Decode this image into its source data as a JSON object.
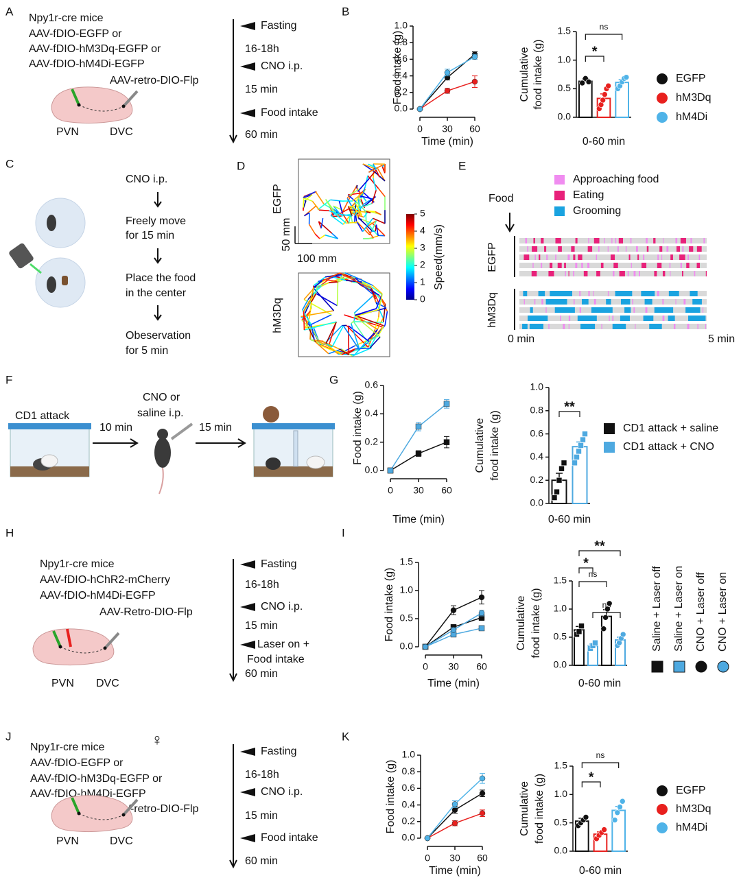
{
  "panel_labels": [
    "A",
    "B",
    "C",
    "D",
    "E",
    "F",
    "G",
    "H",
    "I",
    "J",
    "K"
  ],
  "panels": {
    "a": {
      "text": [
        "Npy1r-cre mice",
        "AAV-fDIO-EGFP or",
        "AAV-fDIO-hM3Dq-EGFP or",
        "AAV-fDIO-hM4Di-EGFP"
      ],
      "tracer": "AAV-retro-DIO-Flp",
      "regions": [
        "PVN",
        "DVC"
      ],
      "timeline": [
        "Fasting",
        "16-18h",
        "CNO i.p.",
        "15 min",
        "Food intake",
        "60 min"
      ]
    },
    "c": {
      "steps": [
        "CNO i.p.",
        "Freely move",
        "for 15 min",
        "Place the food",
        "in the center",
        "Obeservation",
        "for 5 min"
      ]
    },
    "d": {
      "groups": [
        "EGFP",
        "hM3Dq"
      ],
      "scale_bars": [
        "50 mm",
        "100 mm"
      ],
      "colorbar": {
        "label": "Speed(mm/s)",
        "clim": [
          0,
          5
        ],
        "ticks": [
          0,
          1,
          2,
          3,
          4,
          5
        ]
      }
    },
    "e": {
      "legend": [
        {
          "name": "Approaching food",
          "color": "#f08cf0"
        },
        {
          "name": "Eating",
          "color": "#e8217a"
        },
        {
          "name": "Grooming",
          "color": "#1aa3e0"
        }
      ],
      "food": "Food",
      "groups": [
        "EGFP",
        "hM3Dq"
      ],
      "time": [
        "0 min",
        "5 min"
      ]
    },
    "f": {
      "steps": [
        "CD1 attack",
        "10 min",
        "CNO or",
        "saline i.p.",
        "15 min"
      ]
    },
    "h": {
      "text": [
        "Npy1r-cre mice",
        "AAV-fDIO-hChR2-mCherry",
        "AAV-fDIO-hM4Di-EGFP"
      ],
      "tracer": "AAV-Retro-DIO-Flp",
      "regions": [
        "PVN",
        "DVC"
      ],
      "timeline": [
        "Fasting",
        "16-18h",
        "CNO i.p.",
        "15 min",
        "Laser on +",
        "Food intake",
        "60 min"
      ]
    },
    "j": {
      "symbol": "♀",
      "text": [
        "Npy1r-cre mice",
        "AAV-fDIO-EGFP or",
        "AAV-fDIO-hM3Dq-EGFP or",
        "AAV-fDIO-hM4Di-EGFP"
      ],
      "tracer": "AAV-retro-DIO-Flp",
      "regions": [
        "PVN",
        "DVC"
      ],
      "timeline": [
        "Fasting",
        "16-18h",
        "CNO i.p.",
        "15 min",
        "Food intake",
        "60 min"
      ]
    }
  },
  "chart_data": [
    {
      "type": "line",
      "xlabel": "Time (min)",
      "ylabel": [
        "Food intake (g)"
      ],
      "x": [
        0,
        30,
        60
      ],
      "xlim": [
        0,
        60
      ],
      "xticks": [
        0,
        30,
        60
      ],
      "ylim": [
        0,
        1
      ],
      "yticks": [
        {
          "value": 0,
          "label": "0.0"
        },
        0.2,
        0.4,
        0.6,
        0.8,
        {
          "value": 1,
          "label": "1.0"
        }
      ],
      "series": [
        {
          "color": "#111111",
          "marker": "circle",
          "values": [
            0,
            0.38,
            0.66
          ],
          "errors": [
            0,
            0.03,
            0.03
          ]
        },
        {
          "color": "#e8201e",
          "marker": "circle",
          "values": [
            0,
            0.22,
            0.33
          ],
          "errors": [
            0,
            0.03,
            0.07
          ]
        },
        {
          "color": "#4fb3e8",
          "marker": "circle",
          "values": [
            0,
            0.44,
            0.63
          ],
          "errors": [
            0,
            0.04,
            0.03
          ]
        }
      ]
    },
    {
      "type": "bar",
      "xlabel": "0-60 min",
      "ylabel": [
        "Cumulative",
        "food intake (g)"
      ],
      "ylim": [
        0,
        1.5
      ],
      "yticks": [
        {
          "value": 0,
          "label": "0.0"
        },
        0.5,
        {
          "value": 1,
          "label": "1.0"
        },
        1.5
      ],
      "legend": "right",
      "annotations": [
        "*",
        "ns"
      ],
      "series": [
        {
          "name": "EGFP",
          "color": "#111111",
          "marker": "circle",
          "values": [
            0.63
          ],
          "errors": [
            0.04
          ],
          "points": [
            0.6,
            0.68,
            0.62
          ]
        },
        {
          "name": "hM3Dq",
          "color": "#e8201e",
          "marker": "circle",
          "values": [
            0.33
          ],
          "errors": [
            0.08
          ],
          "points": [
            0.15,
            0.22,
            0.3,
            0.4,
            0.5,
            0.55
          ]
        },
        {
          "name": "hM4Di",
          "color": "#4fb3e8",
          "marker": "circle",
          "values": [
            0.61
          ],
          "errors": [
            0.05
          ],
          "points": [
            0.5,
            0.55,
            0.62,
            0.68,
            0.7
          ]
        }
      ]
    },
    {
      "type": "line",
      "xlabel": "Time (min)",
      "ylabel": [
        "Food intake (g)"
      ],
      "x": [
        0,
        30,
        60
      ],
      "xlim": [
        0,
        60
      ],
      "xticks": [
        0,
        30,
        60
      ],
      "ylim": [
        0,
        0.6
      ],
      "yticks": [
        {
          "value": 0,
          "label": "0.0"
        },
        0.2,
        0.4,
        0.6
      ],
      "series": [
        {
          "color": "#111111",
          "marker": "square",
          "values": [
            0,
            0.12,
            0.2
          ],
          "errors": [
            0,
            0.02,
            0.04
          ]
        },
        {
          "color": "#4ea9e0",
          "marker": "square",
          "values": [
            0,
            0.31,
            0.47
          ],
          "errors": [
            0,
            0.03,
            0.03
          ]
        }
      ]
    },
    {
      "type": "bar",
      "xlabel": "0-60 min",
      "ylabel": [
        "Cumulative",
        "food intake (g)"
      ],
      "ylim": [
        0,
        1
      ],
      "yticks": [
        {
          "value": 0,
          "label": "0.0"
        },
        0.2,
        0.4,
        0.6,
        0.8,
        {
          "value": 1,
          "label": "1.0"
        }
      ],
      "legend": "right",
      "annotations": [
        "**"
      ],
      "series": [
        {
          "name": "CD1 attack + saline",
          "color": "#111111",
          "marker": "square",
          "values": [
            0.2
          ],
          "errors": [
            0.06
          ],
          "points": [
            0.05,
            0.1,
            0.2,
            0.3,
            0.35
          ]
        },
        {
          "name": "CD1 attack + CNO",
          "color": "#4ea9e0",
          "marker": "square",
          "values": [
            0.49
          ],
          "errors": [
            0.04
          ],
          "points": [
            0.35,
            0.4,
            0.45,
            0.5,
            0.55,
            0.6
          ]
        }
      ]
    },
    {
      "type": "line",
      "xlabel": "Time (min)",
      "ylabel": [
        "Food intake (g)"
      ],
      "x": [
        0,
        30,
        60
      ],
      "xlim": [
        0,
        60
      ],
      "xticks": [
        0,
        30,
        60
      ],
      "ylim": [
        0,
        1.5
      ],
      "yticks": [
        {
          "value": 0,
          "label": "0.0"
        },
        0.5,
        {
          "value": 1,
          "label": "1.0"
        },
        1.5
      ],
      "series": [
        {
          "color": "#111111",
          "marker": "square",
          "values": [
            0,
            0.35,
            0.52
          ],
          "errors": [
            0,
            0.04,
            0.05
          ]
        },
        {
          "color": "#4ea9e0",
          "marker": "square",
          "values": [
            0,
            0.22,
            0.33
          ],
          "errors": [
            0,
            0.03,
            0.03
          ]
        },
        {
          "color": "#111111",
          "marker": "circle",
          "values": [
            0,
            0.65,
            0.88
          ],
          "errors": [
            0,
            0.08,
            0.12
          ]
        },
        {
          "color": "#4ea9e0",
          "marker": "circle",
          "values": [
            0,
            0.3,
            0.6
          ],
          "errors": [
            0,
            0.04,
            0.05
          ]
        }
      ]
    },
    {
      "type": "bar",
      "xlabel": "0-60 min",
      "ylabel": [
        "Cumulative",
        "food intake (g)"
      ],
      "ylim": [
        0,
        1.5
      ],
      "yticks": [
        {
          "value": 0,
          "label": "0.0"
        },
        0.5,
        {
          "value": 1,
          "label": "1.0"
        },
        1.5
      ],
      "legend": "right",
      "annotations": [
        "ns",
        "*",
        "**",
        "ns"
      ],
      "series": [
        {
          "name": "Saline + Laser off",
          "color": "#111111",
          "marker": "square",
          "values": [
            0.63
          ],
          "errors": [
            0.06
          ],
          "points": [
            0.55,
            0.6,
            0.7
          ]
        },
        {
          "name": "Saline + Laser on",
          "color": "#4ea9e0",
          "marker": "square",
          "values": [
            0.35
          ],
          "errors": [
            0.03
          ],
          "points": [
            0.3,
            0.35,
            0.4
          ]
        },
        {
          "name": "CNO + Laser off",
          "color": "#111111",
          "marker": "circle",
          "values": [
            0.87
          ],
          "errors": [
            0.12
          ],
          "points": [
            0.65,
            0.85,
            1.0,
            1.1
          ]
        },
        {
          "name": "CNO + Laser on",
          "color": "#4ea9e0",
          "marker": "circle",
          "values": [
            0.45
          ],
          "errors": [
            0.05
          ],
          "points": [
            0.35,
            0.4,
            0.48,
            0.55
          ]
        }
      ]
    },
    {
      "type": "line",
      "xlabel": "Time (min)",
      "ylabel": [
        "Food intake (g)"
      ],
      "x": [
        0,
        30,
        60
      ],
      "xlim": [
        0,
        60
      ],
      "xticks": [
        0,
        30,
        60
      ],
      "ylim": [
        0,
        1
      ],
      "yticks": [
        {
          "value": 0,
          "label": "0.0"
        },
        0.2,
        0.4,
        0.6,
        0.8,
        {
          "value": 1,
          "label": "1.0"
        }
      ],
      "series": [
        {
          "color": "#111111",
          "marker": "circle",
          "values": [
            0,
            0.34,
            0.54
          ],
          "errors": [
            0,
            0.04,
            0.04
          ]
        },
        {
          "color": "#e8201e",
          "marker": "circle",
          "values": [
            0,
            0.18,
            0.3
          ],
          "errors": [
            0,
            0.03,
            0.04
          ]
        },
        {
          "color": "#4fb3e8",
          "marker": "circle",
          "values": [
            0,
            0.41,
            0.72
          ],
          "errors": [
            0,
            0.04,
            0.06
          ]
        }
      ]
    },
    {
      "type": "bar",
      "xlabel": "0-60 min",
      "ylabel": [
        "Cumulative",
        "food intake (g)"
      ],
      "ylim": [
        0,
        1.5
      ],
      "yticks": [
        {
          "value": 0,
          "label": "0.0"
        },
        0.5,
        {
          "value": 1,
          "label": "1.0"
        },
        1.5
      ],
      "legend": "right",
      "annotations": [
        "*",
        "ns"
      ],
      "series": [
        {
          "name": "EGFP",
          "color": "#111111",
          "marker": "circle",
          "values": [
            0.53
          ],
          "errors": [
            0.05
          ],
          "points": [
            0.45,
            0.5,
            0.55,
            0.6
          ]
        },
        {
          "name": "hM3Dq",
          "color": "#e8201e",
          "marker": "circle",
          "values": [
            0.3
          ],
          "errors": [
            0.04
          ],
          "points": [
            0.22,
            0.28,
            0.33,
            0.38
          ]
        },
        {
          "name": "hM4Di",
          "color": "#4fb3e8",
          "marker": "circle",
          "values": [
            0.72
          ],
          "errors": [
            0.07
          ],
          "points": [
            0.55,
            0.68,
            0.78,
            0.88
          ]
        }
      ]
    }
  ]
}
